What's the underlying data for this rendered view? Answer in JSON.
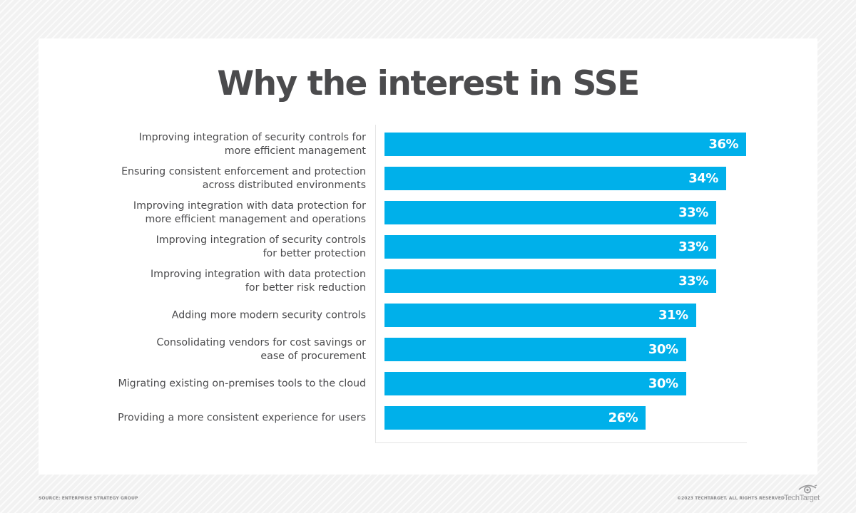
{
  "title": "Why the interest in SSE",
  "footer": {
    "source": "SOURCE: ENTERPRISE STRATEGY GROUP",
    "copyright": "©2023 TECHTARGET. ALL RIGHTS RESERVED",
    "logo_text": "TechTarget",
    "logo_icon": "eye-icon"
  },
  "colors": {
    "bar": "#00B0EA",
    "title": "#4B4B4D",
    "label": "#4A4A4C",
    "background": "#F2F2F2",
    "panel": "#FFFFFF"
  },
  "bars": [
    {
      "label": "Improving integration of security controls for\nmore efficient management",
      "value": 36,
      "display": "36%"
    },
    {
      "label": "Ensuring consistent enforcement and protection\nacross distributed environments",
      "value": 34,
      "display": "34%"
    },
    {
      "label": "Improving integration with data protection for\nmore efficient management and operations",
      "value": 33,
      "display": "33%"
    },
    {
      "label": "Improving integration of security controls\nfor better protection",
      "value": 33,
      "display": "33%"
    },
    {
      "label": "Improving integration with data protection\nfor better risk reduction",
      "value": 33,
      "display": "33%"
    },
    {
      "label": "Adding more modern security controls",
      "value": 31,
      "display": "31%"
    },
    {
      "label": "Consolidating vendors for cost savings or\nease of procurement",
      "value": 30,
      "display": "30%"
    },
    {
      "label": "Migrating existing on-premises tools to the cloud",
      "value": 30,
      "display": "30%"
    },
    {
      "label": "Providing a more consistent experience for users",
      "value": 26,
      "display": "26%"
    }
  ],
  "chart_data": {
    "type": "bar",
    "orientation": "horizontal",
    "title": "Why the interest in SSE",
    "xlabel": "",
    "ylabel": "",
    "categories": [
      "Improving integration of security controls for more efficient management",
      "Ensuring consistent enforcement and protection across distributed environments",
      "Improving integration with data protection for more efficient management and operations",
      "Improving integration of security controls for better protection",
      "Improving integration with data protection for better risk reduction",
      "Adding more modern security controls",
      "Consolidating vendors for cost savings or ease of procurement",
      "Migrating existing on-premises tools to the cloud",
      "Providing a more consistent experience for users"
    ],
    "values": [
      36,
      34,
      33,
      33,
      33,
      31,
      30,
      30,
      26
    ],
    "value_format": "percent",
    "data_labels": [
      "36%",
      "34%",
      "33%",
      "33%",
      "33%",
      "31%",
      "30%",
      "30%",
      "26%"
    ],
    "xlim": [
      0,
      36
    ],
    "grid": false,
    "legend": null,
    "source": "SOURCE: ENTERPRISE STRATEGY GROUP"
  }
}
